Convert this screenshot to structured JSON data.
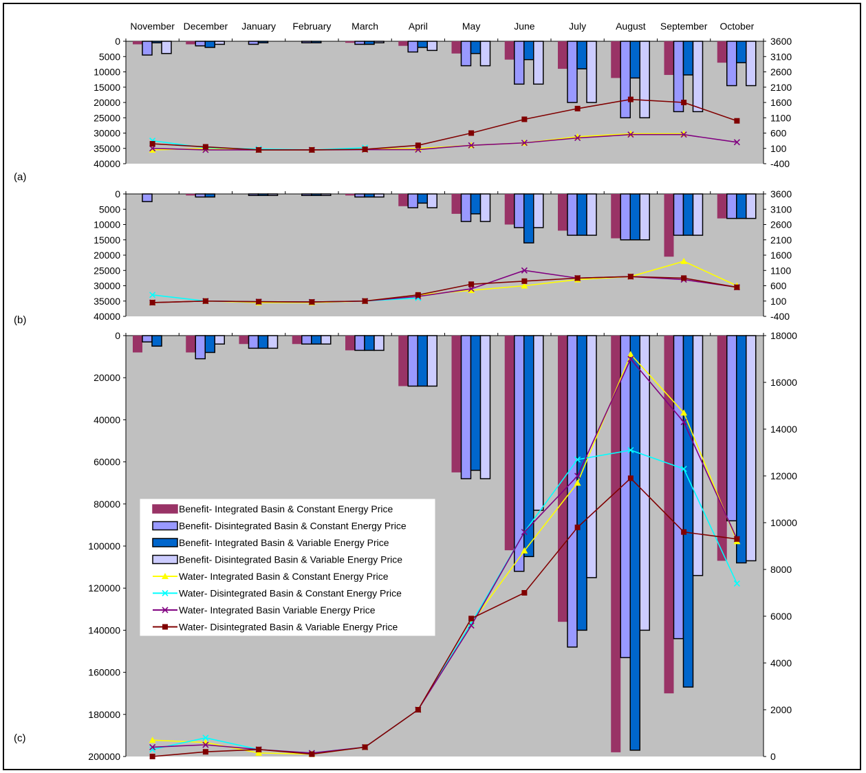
{
  "months": [
    "November",
    "December",
    "January",
    "February",
    "March",
    "April",
    "May",
    "June",
    "July",
    "August",
    "September",
    "October"
  ],
  "legend": [
    {
      "label": "Benefit- Integrated Basin & Constant Energy Price",
      "kind": "bar",
      "color": "#993366",
      "stroke": "#993366"
    },
    {
      "label": "Benefit- Disintegrated Basin & Constant Energy Price",
      "kind": "bar",
      "color": "#9999ff",
      "stroke": "#000000"
    },
    {
      "label": "Benefit- Integrated Basin & Variable Energy Price",
      "kind": "bar",
      "color": "#0066cc",
      "stroke": "#000000"
    },
    {
      "label": "Benefit- Disintegrated Basin & Variable Energy Price",
      "kind": "bar",
      "color": "#ccccff",
      "stroke": "#000000"
    },
    {
      "label": "Water- Integrated Basin & Constant Energy Price",
      "kind": "line",
      "color": "#ffff00",
      "marker": "triangle"
    },
    {
      "label": "Water- Disintegrated Basin & Constant Energy Price",
      "kind": "line",
      "color": "#00ffff",
      "marker": "x"
    },
    {
      "label": "Water- Integrated Basin Variable Energy Price",
      "kind": "line",
      "color": "#800080",
      "marker": "x"
    },
    {
      "label": "Water- Disintegrated Basin & Variable Energy Price",
      "kind": "line",
      "color": "#800000",
      "marker": "square"
    }
  ],
  "chart_data": [
    {
      "panel_label": "(a)",
      "type": "bar",
      "categories": [
        "November",
        "December",
        "January",
        "February",
        "March",
        "April",
        "May",
        "June",
        "July",
        "August",
        "September",
        "October"
      ],
      "ylim_left": [
        0,
        40000
      ],
      "yticks_left": [
        "0",
        "5000",
        "10000",
        "15000",
        "20000",
        "25000",
        "30000",
        "35000",
        "40000"
      ],
      "ylim_right": [
        -400,
        3600
      ],
      "yticks_right": [
        "3600",
        "3100",
        "2600",
        "2100",
        "1600",
        "1100",
        "600",
        "100",
        "-400"
      ],
      "bar_series": [
        {
          "values": [
            1000,
            1000,
            0,
            0,
            500,
            1500,
            4000,
            6000,
            9000,
            12000,
            11000,
            7000
          ]
        },
        {
          "values": [
            4500,
            1500,
            1000,
            500,
            1000,
            3500,
            8000,
            14000,
            20000,
            25000,
            23000,
            14500
          ]
        },
        {
          "values": [
            500,
            2000,
            500,
            500,
            1000,
            2000,
            4000,
            6000,
            9000,
            12000,
            11000,
            7000
          ]
        },
        {
          "values": [
            4000,
            1000,
            0,
            0,
            500,
            3000,
            8000,
            14000,
            20000,
            25000,
            23000,
            14500
          ]
        }
      ],
      "line_series": [
        {
          "values": [
            50,
            100,
            50,
            50,
            70,
            100,
            200,
            280,
            480,
            580,
            580,
            null
          ]
        },
        {
          "values": [
            350,
            120,
            80,
            50,
            120,
            null,
            null,
            null,
            null,
            null,
            null,
            null
          ]
        },
        {
          "values": [
            100,
            50,
            50,
            50,
            60,
            60,
            200,
            280,
            440,
            550,
            550,
            300
          ]
        },
        {
          "values": [
            250,
            150,
            50,
            50,
            70,
            200,
            600,
            1050,
            1400,
            1700,
            1600,
            1000
          ]
        }
      ]
    },
    {
      "panel_label": "(b)",
      "type": "bar",
      "categories": [
        "November",
        "December",
        "January",
        "February",
        "March",
        "April",
        "May",
        "June",
        "July",
        "August",
        "September",
        "October"
      ],
      "ylim_left": [
        0,
        40000
      ],
      "yticks_left": [
        "0",
        "5000",
        "10000",
        "15000",
        "20000",
        "25000",
        "30000",
        "35000",
        "40000"
      ],
      "ylim_right": [
        -400,
        3600
      ],
      "yticks_right": [
        "3600",
        "3100",
        "2600",
        "2100",
        "1600",
        "1100",
        "600",
        "100",
        "-400"
      ],
      "bar_series": [
        {
          "values": [
            0,
            500,
            0,
            0,
            500,
            4000,
            6500,
            10000,
            12000,
            14500,
            20500,
            8000
          ]
        },
        {
          "values": [
            2500,
            1000,
            500,
            500,
            1000,
            4500,
            9000,
            11000,
            13500,
            15000,
            13500,
            8000
          ]
        },
        {
          "values": [
            0,
            1000,
            500,
            500,
            1000,
            3000,
            6500,
            16000,
            13500,
            15000,
            13500,
            8000
          ]
        },
        {
          "values": [
            0,
            0,
            500,
            500,
            1000,
            4500,
            9000,
            11000,
            13500,
            15000,
            13500,
            8000
          ]
        }
      ],
      "line_series": [
        {
          "values": [
            50,
            100,
            50,
            50,
            100,
            300,
            450,
            600,
            800,
            900,
            1400,
            600
          ]
        },
        {
          "values": [
            300,
            100,
            80,
            70,
            100,
            200,
            null,
            null,
            null,
            null,
            null,
            null
          ]
        },
        {
          "values": [
            50,
            100,
            80,
            70,
            100,
            250,
            500,
            1100,
            850,
            900,
            800,
            550
          ]
        },
        {
          "values": [
            50,
            100,
            80,
            70,
            100,
            300,
            650,
            750,
            850,
            900,
            850,
            550
          ]
        }
      ]
    },
    {
      "panel_label": "(c)",
      "type": "bar",
      "categories": [
        "November",
        "December",
        "January",
        "February",
        "March",
        "April",
        "May",
        "June",
        "July",
        "August",
        "September",
        "October"
      ],
      "ylim_left": [
        0,
        200000
      ],
      "yticks_left": [
        "0",
        "20000",
        "40000",
        "60000",
        "80000",
        "100000",
        "120000",
        "140000",
        "160000",
        "180000",
        "200000"
      ],
      "ylim_right": [
        0,
        18000
      ],
      "yticks_right": [
        "18000",
        "16000",
        "14000",
        "12000",
        "10000",
        "8000",
        "6000",
        "4000",
        "2000",
        "0"
      ],
      "bar_series": [
        {
          "values": [
            8000,
            8000,
            4000,
            4000,
            7000,
            24000,
            65000,
            102000,
            136000,
            198000,
            170000,
            107000
          ]
        },
        {
          "values": [
            3000,
            11000,
            6000,
            4000,
            7000,
            24000,
            68000,
            112000,
            148000,
            153000,
            144000,
            88000
          ]
        },
        {
          "values": [
            5000,
            8000,
            6000,
            4000,
            7000,
            24000,
            64000,
            105000,
            140000,
            197000,
            167000,
            108000
          ]
        },
        {
          "values": [
            0,
            4000,
            6000,
            4000,
            7000,
            24000,
            68000,
            83000,
            115000,
            140000,
            114000,
            107000
          ]
        }
      ],
      "line_series": [
        {
          "values": [
            700,
            600,
            150,
            100,
            400,
            2000,
            5700,
            8800,
            11700,
            17200,
            14700,
            9200
          ]
        },
        {
          "values": [
            300,
            800,
            300,
            150,
            400,
            2000,
            5700,
            9600,
            12700,
            13100,
            12300,
            7400
          ]
        },
        {
          "values": [
            400,
            500,
            300,
            150,
            400,
            2000,
            5600,
            9600,
            12000,
            17000,
            14300,
            9300
          ]
        },
        {
          "values": [
            0,
            200,
            300,
            100,
            400,
            2000,
            5900,
            7000,
            9800,
            11900,
            9600,
            9300
          ]
        }
      ]
    }
  ]
}
